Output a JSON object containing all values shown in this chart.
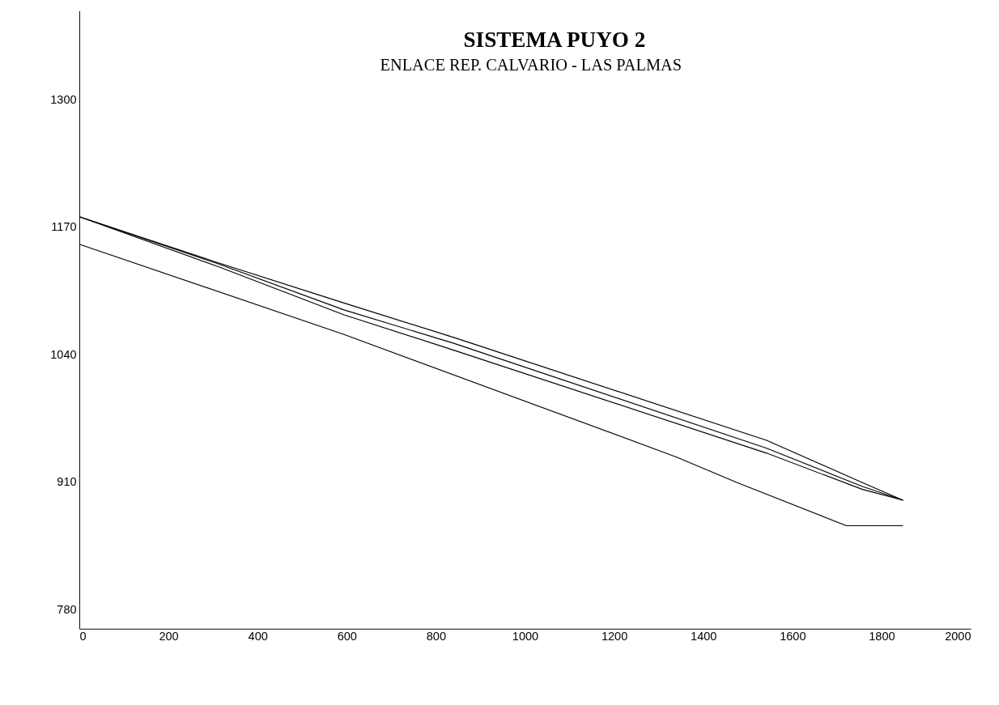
{
  "chart_data": {
    "type": "line",
    "title": "SISTEMA PUYO 2",
    "subtitle": "ENLACE REP. CALVARIO - LAS PALMAS",
    "xlim": [
      0,
      2000
    ],
    "xticks": [
      0,
      200,
      400,
      600,
      800,
      1000,
      1200,
      1400,
      1600,
      1800,
      2000
    ],
    "ylim": [
      760,
      1390
    ],
    "yticks": [
      780,
      910,
      1040,
      1170,
      1300
    ],
    "grid": false,
    "marker": "none",
    "line_style": "solid",
    "series": [
      {
        "color": "#000000",
        "x": [
          0,
          312,
          594,
          840,
          1542,
          1757,
          1848
        ],
        "values": [
          1180,
          1133,
          1092,
          1057,
          952,
          909,
          891
        ]
      },
      {
        "color": "#000000",
        "x": [
          0,
          312,
          594,
          840,
          1542,
          1757,
          1848
        ],
        "values": [
          1180,
          1132,
          1085,
          1051,
          944,
          905,
          891
        ]
      },
      {
        "color": "#000000",
        "x": [
          0,
          312,
          594,
          840,
          1542,
          1757,
          1848
        ],
        "values": [
          1180,
          1129,
          1080,
          1044,
          939,
          902,
          891
        ]
      },
      {
        "color": "#000000",
        "x": [
          0,
          594,
          1340,
          1476,
          1721,
          1848
        ],
        "values": [
          1152,
          1060,
          935,
          909,
          865,
          865
        ]
      }
    ]
  }
}
